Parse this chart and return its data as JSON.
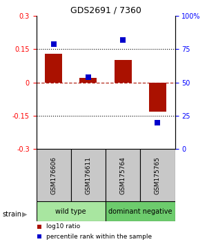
{
  "title": "GDS2691 / 7360",
  "samples": [
    "GSM176606",
    "GSM176611",
    "GSM175764",
    "GSM175765"
  ],
  "log10_ratio": [
    0.13,
    0.02,
    0.1,
    -0.13
  ],
  "percentile_rank": [
    79,
    54,
    82,
    20
  ],
  "groups": [
    {
      "label": "wild type",
      "samples": [
        0,
        1
      ],
      "color": "#a8e6a0"
    },
    {
      "label": "dominant negative",
      "samples": [
        2,
        3
      ],
      "color": "#6dcc6d"
    }
  ],
  "ylim_left": [
    -0.3,
    0.3
  ],
  "ylim_right": [
    0,
    100
  ],
  "yticks_left": [
    -0.3,
    -0.15,
    0,
    0.15,
    0.3
  ],
  "yticks_right": [
    0,
    25,
    50,
    75,
    100
  ],
  "hlines_dotted": [
    0.15,
    -0.15
  ],
  "bar_color": "#aa1100",
  "dot_color": "#0000cc",
  "bar_width": 0.5,
  "dot_size": 35,
  "sample_box_color": "#c8c8c8",
  "strain_arrow": "▶"
}
